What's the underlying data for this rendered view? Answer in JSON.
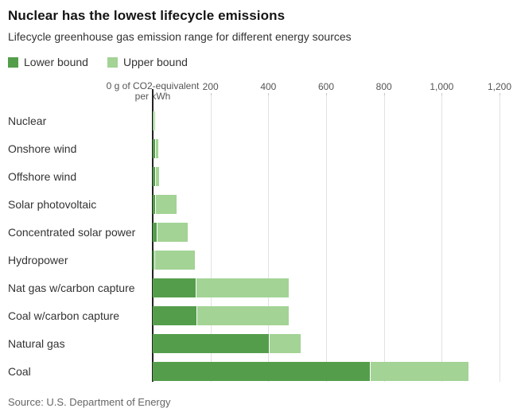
{
  "page": {
    "background": "#ffffff"
  },
  "header": {
    "title": "Nuclear has the lowest lifecycle emissions",
    "subtitle": "Lifecycle greenhouse gas emission range for different energy sources"
  },
  "legend": {
    "items": [
      {
        "label": "Lower bound",
        "color": "#549e4b"
      },
      {
        "label": "Upper bound",
        "color": "#a3d395"
      }
    ]
  },
  "axis": {
    "zero_label_line1": "0 g of CO2-equivalent",
    "zero_label_line2": "per kWh",
    "max": 1200,
    "ticks": [
      {
        "value": 200,
        "label": "200"
      },
      {
        "value": 400,
        "label": "400"
      },
      {
        "value": 600,
        "label": "600"
      },
      {
        "value": 800,
        "label": "800"
      },
      {
        "value": 1000,
        "label": "1,000"
      },
      {
        "value": 1200,
        "label": "1,200"
      }
    ]
  },
  "source": "Source: U.S. Department of Energy",
  "chart_data": {
    "type": "bar",
    "orientation": "horizontal",
    "title": "Nuclear has the lowest lifecycle emissions",
    "subtitle": "Lifecycle greenhouse gas emission range for different energy sources",
    "xlabel": "g of CO2-equivalent per kWh",
    "ylabel": "",
    "xlim": [
      0,
      1200
    ],
    "gridlines_on": true,
    "gridline_values": [
      200,
      400,
      600,
      800,
      1000,
      1200
    ],
    "legend_position": "top-left",
    "categories": [
      "Nuclear",
      "Onshore wind",
      "Offshore wind",
      "Solar photovoltaic",
      "Concentrated solar power",
      "Hydropower",
      "Nat gas w/carbon capture",
      "Coal w/carbon capture",
      "Natural gas",
      "Coal"
    ],
    "series": [
      {
        "name": "Lower bound",
        "color": "#549e4b",
        "values": [
          4,
          7,
          9,
          8,
          13,
          6,
          148,
          150,
          403,
          752
        ]
      },
      {
        "name": "Upper bound",
        "color": "#a3d395",
        "values": [
          8,
          20,
          23,
          83,
          122,
          147,
          470,
          472,
          513,
          1093
        ]
      }
    ],
    "source": "U.S. Department of Energy"
  }
}
